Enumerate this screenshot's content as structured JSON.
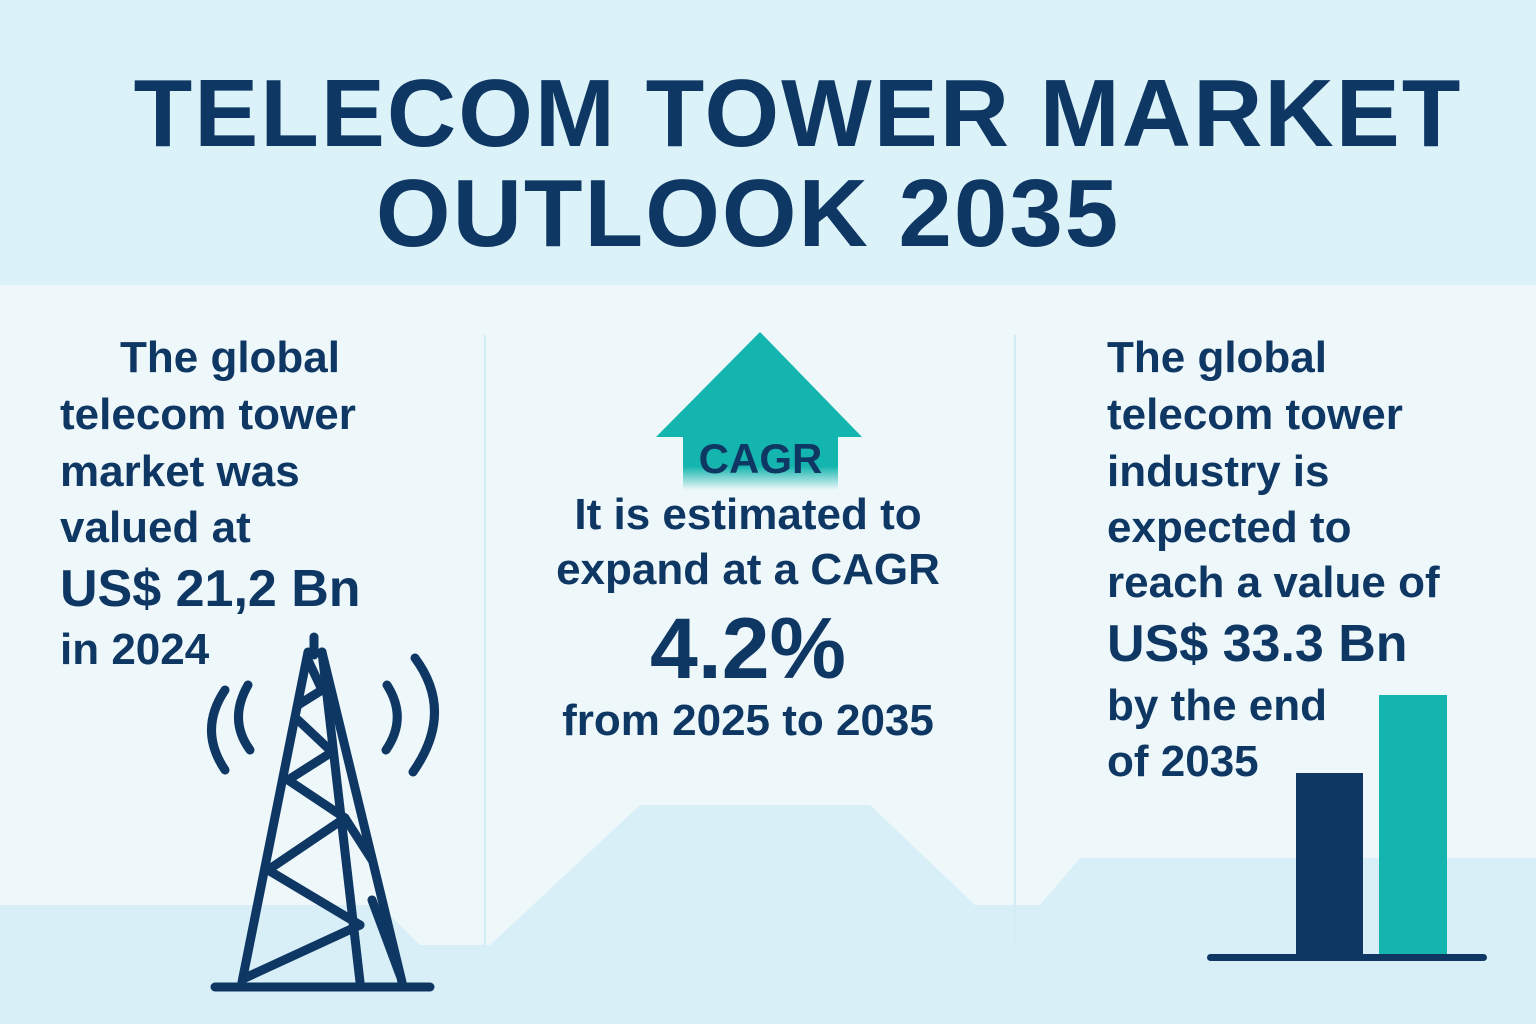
{
  "title": {
    "line1": "TELECOM TOWER MARKET",
    "line2": "OUTLOOK 2035"
  },
  "left": {
    "lines": [
      "The global",
      "telecom tower",
      "market was",
      "valued at"
    ],
    "value": "US$ 21,2 Bn",
    "year": "in 2024",
    "icon": "telecom-tower-icon"
  },
  "center": {
    "arrow_label": "CAGR",
    "lines": [
      "It is estimated to",
      "expand at a CAGR"
    ],
    "value": "4.2%",
    "period": "from 2025 to 2035",
    "icon": "up-arrow-icon"
  },
  "right": {
    "lines": [
      "The global",
      "telecom tower",
      "industry is",
      "expected to",
      "reach a value of"
    ],
    "value": "US$ 33.3 Bn",
    "end_lines": [
      "by the end",
      "of 2035"
    ],
    "icon": "bar-chart-icon"
  },
  "colors": {
    "navy": "#0f3763",
    "teal": "#14b5ae",
    "background": "#eef8fb",
    "header": "#dcf2f9"
  }
}
